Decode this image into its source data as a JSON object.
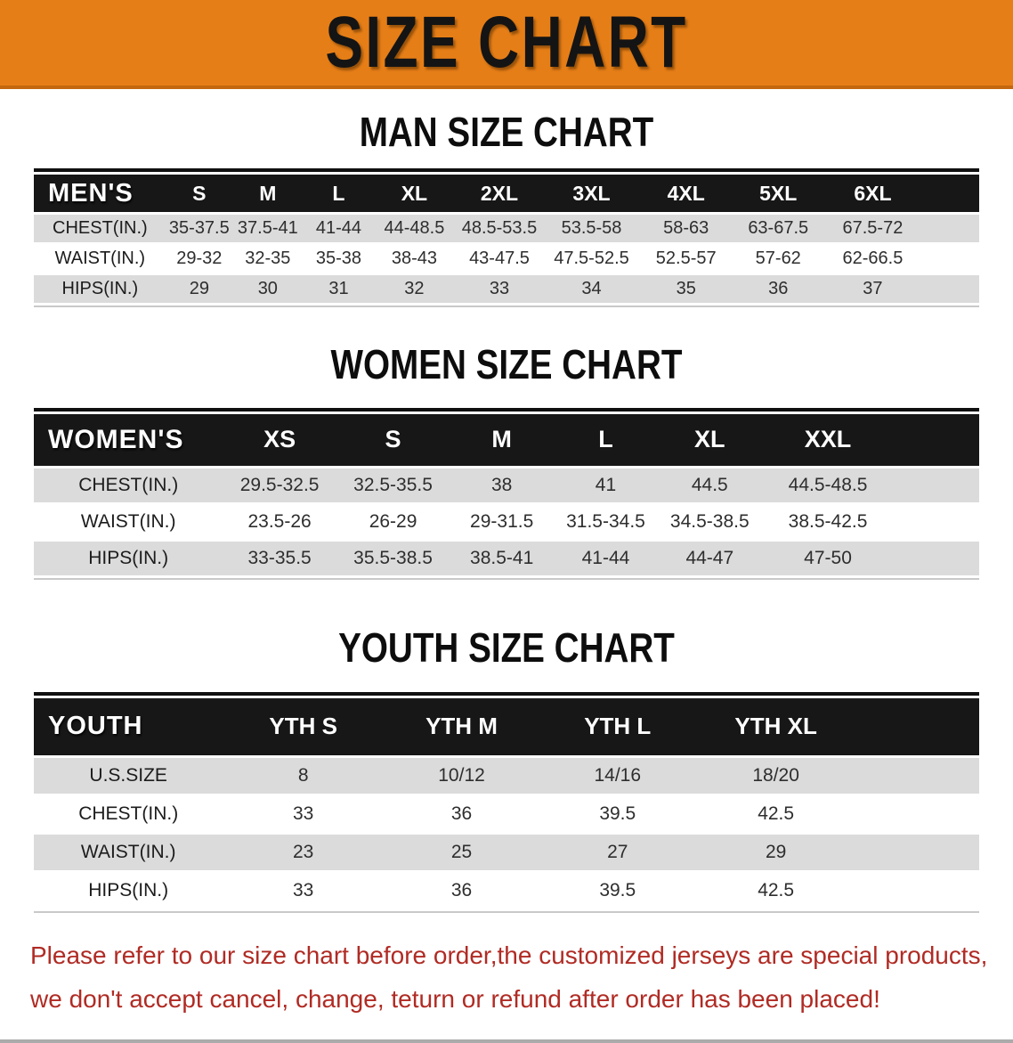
{
  "banner": {
    "title": "SIZE CHART",
    "bg_color": "#E67E17"
  },
  "sections": {
    "men": {
      "title": "MAN SIZE CHART",
      "table": {
        "header": [
          "MEN'S",
          "S",
          "M",
          "L",
          "XL",
          "2XL",
          "3XL",
          "4XL",
          "5XL",
          "6XL"
        ],
        "rows": [
          [
            "CHEST(IN.)",
            "35-37.5",
            "37.5-41",
            "41-44",
            "44-48.5",
            "48.5-53.5",
            "53.5-58",
            "58-63",
            "63-67.5",
            "67.5-72"
          ],
          [
            "WAIST(IN.)",
            "29-32",
            "32-35",
            "35-38",
            "38-43",
            "43-47.5",
            "47.5-52.5",
            "52.5-57",
            "57-62",
            "62-66.5"
          ],
          [
            "HIPS(IN.)",
            "29",
            "30",
            "31",
            "32",
            "33",
            "34",
            "35",
            "36",
            "37"
          ]
        ]
      }
    },
    "women": {
      "title": "WOMEN SIZE CHART",
      "table": {
        "header": [
          "WOMEN'S",
          "XS",
          "S",
          "M",
          "L",
          "XL",
          "XXL"
        ],
        "rows": [
          [
            "CHEST(IN.)",
            "29.5-32.5",
            "32.5-35.5",
            "38",
            "41",
            "44.5",
            "44.5-48.5"
          ],
          [
            "WAIST(IN.)",
            "23.5-26",
            "26-29",
            "29-31.5",
            "31.5-34.5",
            "34.5-38.5",
            "38.5-42.5"
          ],
          [
            "HIPS(IN.)",
            "33-35.5",
            "35.5-38.5",
            "38.5-41",
            "41-44",
            "44-47",
            "47-50"
          ]
        ]
      }
    },
    "youth": {
      "title": "YOUTH SIZE CHART",
      "table": {
        "header": [
          "YOUTH",
          "YTH S",
          "YTH M",
          "YTH L",
          "YTH XL"
        ],
        "rows": [
          [
            "U.S.SIZE",
            "8",
            "10/12",
            "14/16",
            "18/20"
          ],
          [
            "CHEST(IN.)",
            "33",
            "36",
            "39.5",
            "42.5"
          ],
          [
            "WAIST(IN.)",
            "23",
            "25",
            "27",
            "29"
          ],
          [
            "HIPS(IN.)",
            "33",
            "36",
            "39.5",
            "42.5"
          ]
        ]
      }
    }
  },
  "footer": {
    "line1": "Please refer to our size chart before order,the customized jerseys are special products,",
    "line2": "we don't accept cancel, change, teturn or refund after order has been placed!",
    "text_color": "#B02B24"
  }
}
